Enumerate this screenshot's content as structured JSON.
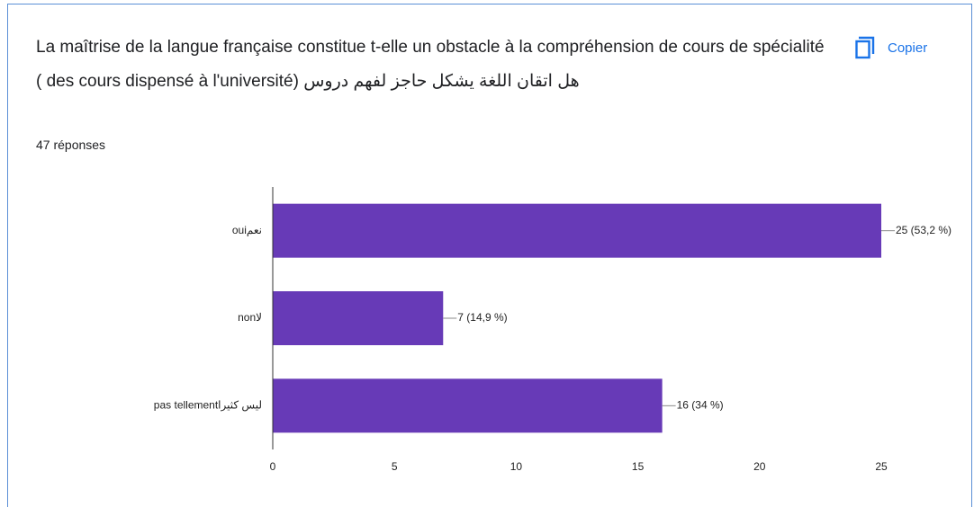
{
  "chart_data": {
    "type": "barh",
    "title": "La maîtrise de la langue française constitue t-elle un obstacle à la compréhension de cours de spécialité ( des cours dispensé à l'université) هل اتقان اللغة يشكل حاجز لفهم دروس",
    "subtitle": "47 réponses",
    "button": "Copier",
    "categories": [
      "ouiنعم",
      "nonلا",
      "pas tellementليس كثيرا"
    ],
    "values": [
      25,
      7,
      16
    ],
    "value_labels": [
      "25 (53,2 %)",
      "7 (14,9 %)",
      "16 (34 %)"
    ],
    "color": "#673ab7",
    "xlim": [
      0,
      25
    ],
    "xticks": [
      0,
      5,
      10,
      15,
      20,
      25
    ],
    "grid": false
  }
}
